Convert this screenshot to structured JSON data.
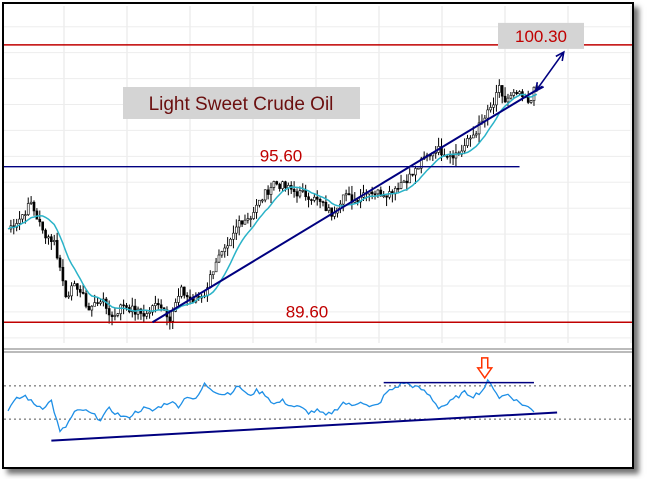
{
  "chart_data": [
    {
      "type": "candlestick",
      "title": "Light Sweet Crude Oil",
      "ylim": [
        88.8,
        101.8
      ],
      "n_bars": 180,
      "levels": [
        {
          "value": 100.3,
          "label": "100.30",
          "color": "#c00000"
        },
        {
          "value": 95.6,
          "label": "95.60",
          "color": "#000080"
        },
        {
          "value": 89.6,
          "label": "89.60",
          "color": "#c00000"
        }
      ],
      "moving_average_color": "#2ab3c8",
      "price_color": "#000000",
      "trendline": {
        "from": {
          "bar": 50,
          "value": 89.6
        },
        "to": {
          "bar": 185,
          "value": 98.7
        },
        "color": "#000080"
      },
      "target_arrow": {
        "bar": 184,
        "from": 98.75,
        "to": 100.1,
        "color": "#000080"
      },
      "close_anchors": [
        [
          0,
          93.2
        ],
        [
          4,
          93.6
        ],
        [
          8,
          94.2
        ],
        [
          12,
          93.1
        ],
        [
          16,
          92.7
        ],
        [
          20,
          90.7
        ],
        [
          24,
          91.0
        ],
        [
          28,
          90.1
        ],
        [
          32,
          90.5
        ],
        [
          36,
          89.8
        ],
        [
          40,
          90.3
        ],
        [
          44,
          90.0
        ],
        [
          48,
          89.9
        ],
        [
          52,
          90.4
        ],
        [
          56,
          89.8
        ],
        [
          60,
          90.8
        ],
        [
          64,
          90.4
        ],
        [
          68,
          90.7
        ],
        [
          72,
          92.0
        ],
        [
          76,
          92.4
        ],
        [
          80,
          93.5
        ],
        [
          84,
          93.7
        ],
        [
          88,
          94.4
        ],
        [
          92,
          95.0
        ],
        [
          96,
          94.8
        ],
        [
          100,
          94.6
        ],
        [
          104,
          94.5
        ],
        [
          108,
          94.2
        ],
        [
          112,
          93.8
        ],
        [
          116,
          94.5
        ],
        [
          120,
          94.3
        ],
        [
          124,
          94.7
        ],
        [
          128,
          94.6
        ],
        [
          132,
          94.6
        ],
        [
          136,
          95.0
        ],
        [
          140,
          95.3
        ],
        [
          144,
          95.9
        ],
        [
          148,
          96.3
        ],
        [
          152,
          96.1
        ],
        [
          156,
          96.1
        ],
        [
          160,
          96.7
        ],
        [
          164,
          97.3
        ],
        [
          168,
          98.0
        ],
        [
          170,
          98.6
        ],
        [
          172,
          98.1
        ],
        [
          176,
          98.4
        ],
        [
          180,
          98.1
        ],
        [
          183,
          98.7
        ]
      ]
    },
    {
      "type": "line",
      "panel": "oscillator",
      "ylim": [
        0,
        100
      ],
      "series_color": "#1e8fe6",
      "dotted_levels": [
        70,
        30
      ],
      "resistance_line": {
        "from_bar": 130,
        "to_bar": 182,
        "value": 74
      },
      "trendline": {
        "from": {
          "bar": 15,
          "value": 4
        },
        "to": {
          "bar": 190,
          "value": 38
        },
        "color": "#000080"
      },
      "marker": {
        "bar": 166,
        "color": "#ff3300",
        "symbol": "down-arrow"
      },
      "anchors": [
        [
          0,
          42
        ],
        [
          3,
          54
        ],
        [
          6,
          58
        ],
        [
          9,
          48
        ],
        [
          12,
          44
        ],
        [
          15,
          52
        ],
        [
          18,
          14
        ],
        [
          20,
          21
        ],
        [
          23,
          38
        ],
        [
          26,
          41
        ],
        [
          29,
          36
        ],
        [
          32,
          30
        ],
        [
          35,
          42
        ],
        [
          38,
          36
        ],
        [
          41,
          31
        ],
        [
          44,
          38
        ],
        [
          47,
          43
        ],
        [
          50,
          40
        ],
        [
          53,
          46
        ],
        [
          56,
          51
        ],
        [
          59,
          46
        ],
        [
          62,
          58
        ],
        [
          65,
          53
        ],
        [
          68,
          72
        ],
        [
          71,
          65
        ],
        [
          74,
          60
        ],
        [
          77,
          62
        ],
        [
          80,
          70
        ],
        [
          83,
          58
        ],
        [
          86,
          64
        ],
        [
          89,
          60
        ],
        [
          92,
          48
        ],
        [
          95,
          52
        ],
        [
          98,
          46
        ],
        [
          101,
          44
        ],
        [
          104,
          38
        ],
        [
          107,
          40
        ],
        [
          110,
          34
        ],
        [
          113,
          40
        ],
        [
          116,
          50
        ],
        [
          119,
          46
        ],
        [
          122,
          52
        ],
        [
          125,
          44
        ],
        [
          128,
          47
        ],
        [
          131,
          62
        ],
        [
          134,
          68
        ],
        [
          137,
          74
        ],
        [
          140,
          70
        ],
        [
          143,
          66
        ],
        [
          146,
          58
        ],
        [
          149,
          44
        ],
        [
          152,
          48
        ],
        [
          155,
          56
        ],
        [
          158,
          62
        ],
        [
          161,
          58
        ],
        [
          164,
          64
        ],
        [
          166,
          75
        ],
        [
          168,
          68
        ],
        [
          170,
          56
        ],
        [
          173,
          60
        ],
        [
          176,
          52
        ],
        [
          179,
          46
        ],
        [
          182,
          40
        ]
      ]
    }
  ]
}
